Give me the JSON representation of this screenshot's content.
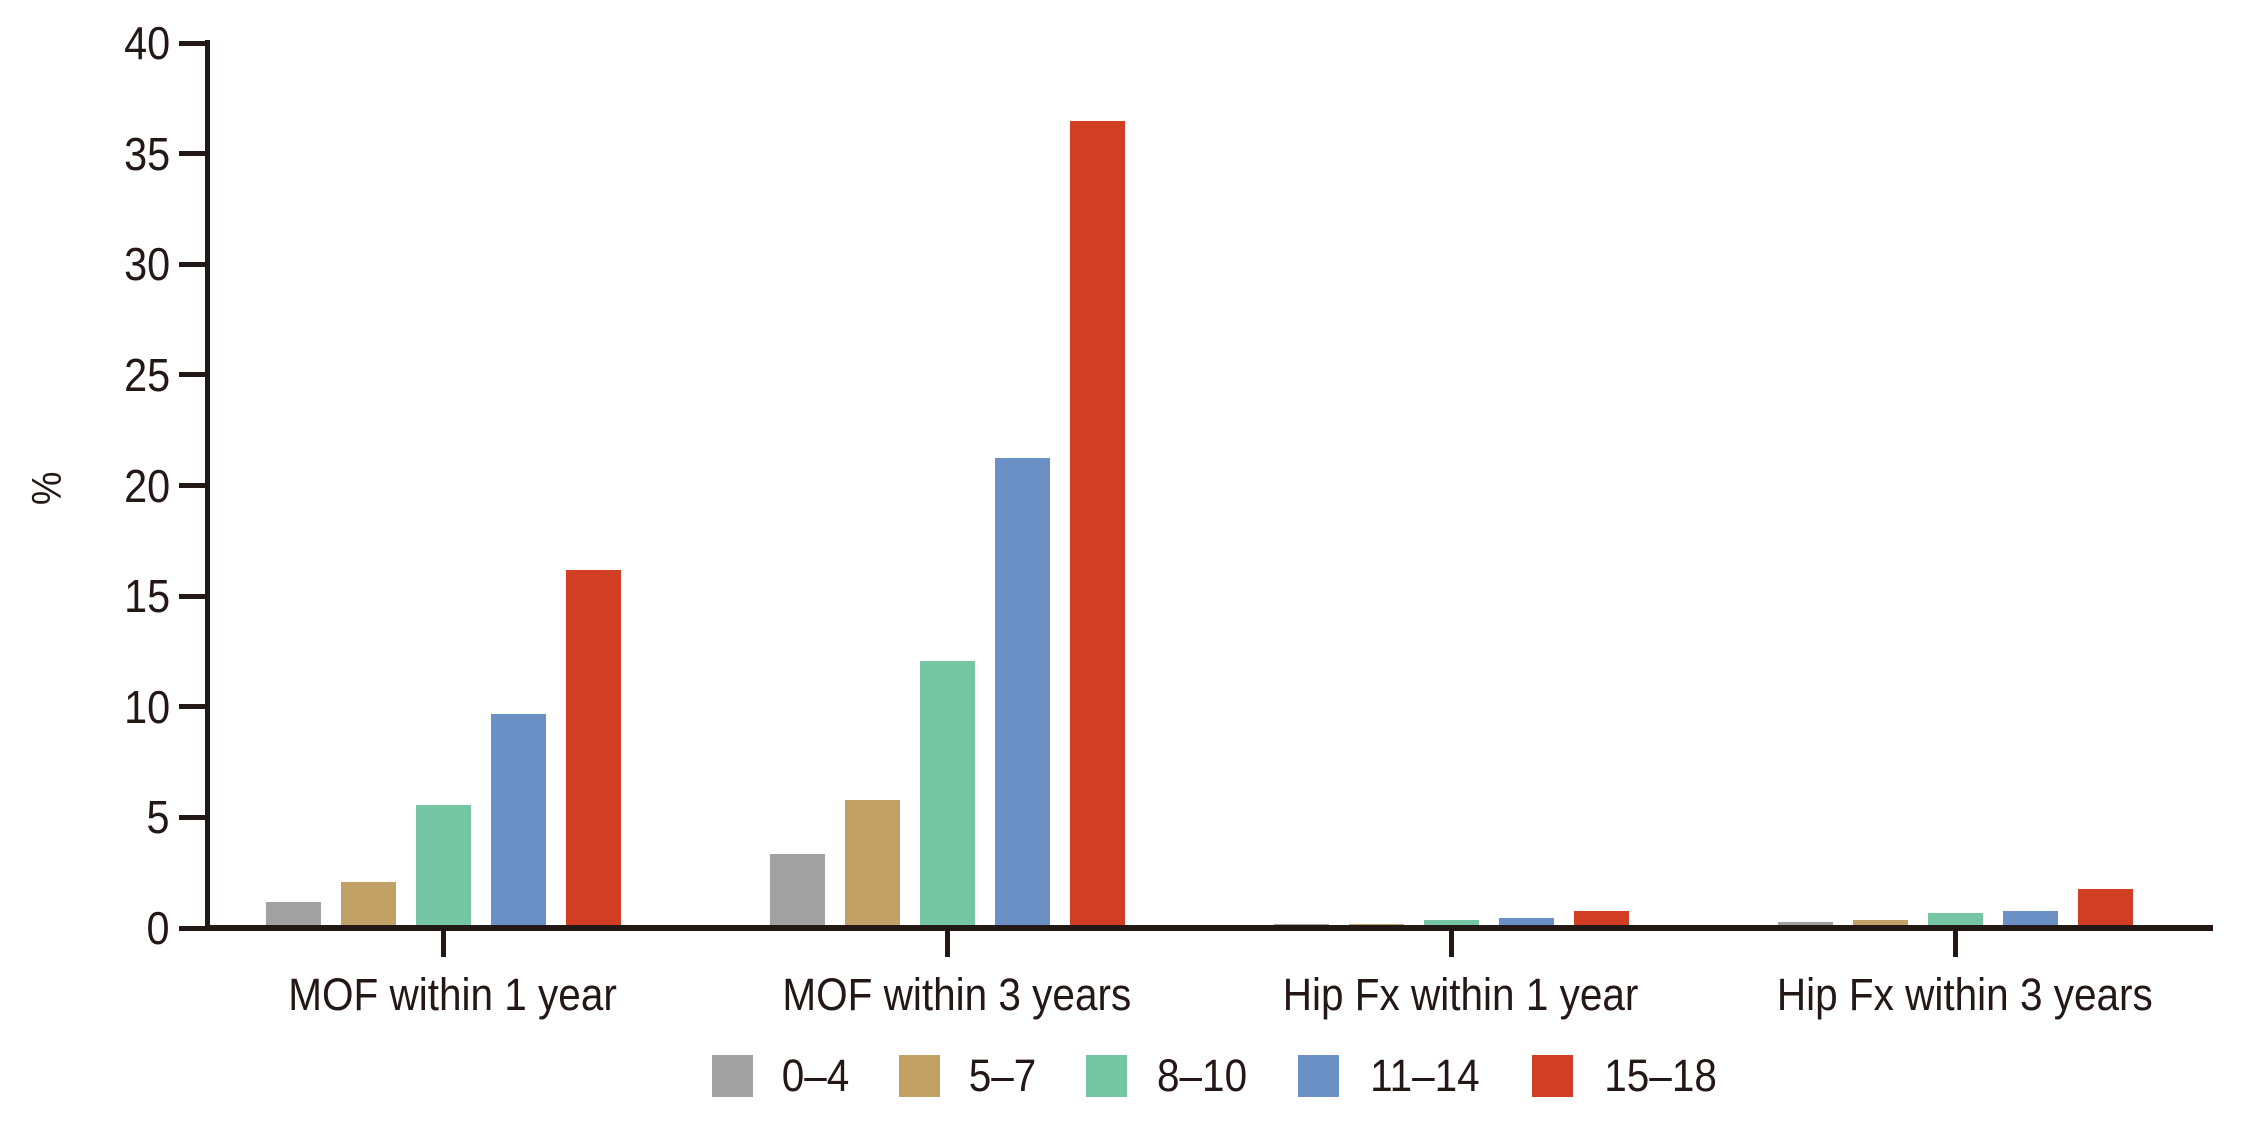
{
  "chart_data": {
    "type": "bar",
    "title": "",
    "xlabel": "",
    "ylabel": "%",
    "ylim": [
      0,
      40
    ],
    "yticks": [
      0,
      5,
      10,
      15,
      20,
      25,
      30,
      35,
      40
    ],
    "grid": false,
    "legend_position": "bottom-center",
    "categories": [
      "MOF within 1 year",
      "MOF within 3 years",
      "Hip Fx within 1 year",
      "Hip Fx within 3 years"
    ],
    "series": [
      {
        "name": "0–4",
        "color": "#a1a1a1",
        "values": [
          1.3,
          3.5,
          0.3,
          0.4
        ]
      },
      {
        "name": "5–7",
        "color": "#c1a166",
        "values": [
          2.2,
          5.9,
          0.3,
          0.5
        ]
      },
      {
        "name": "8–10",
        "color": "#76c5a5",
        "values": [
          5.7,
          12.2,
          0.5,
          0.8
        ]
      },
      {
        "name": "11–14",
        "color": "#6b90c5",
        "values": [
          9.8,
          21.4,
          0.6,
          0.9
        ]
      },
      {
        "name": "15–18",
        "color": "#d23e23",
        "values": [
          16.3,
          36.6,
          0.9,
          1.9
        ]
      }
    ],
    "axis_color": "#231815"
  }
}
